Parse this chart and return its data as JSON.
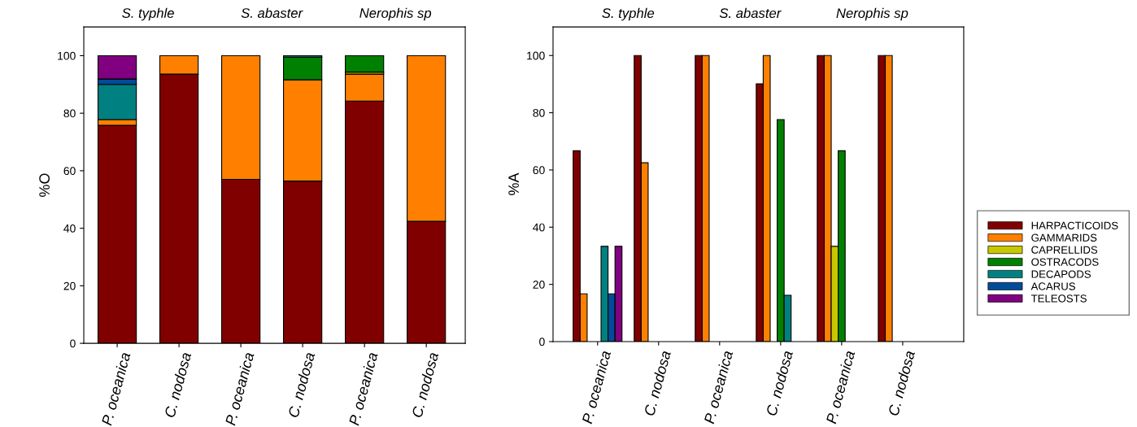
{
  "chart_data": [
    {
      "type": "bar",
      "stacked": true,
      "ylabel": "%O",
      "categories": [
        "P. oceanica",
        "C. nodosa",
        "P. oceanica",
        "C. nodosa",
        "P. oceanica",
        "C. nodosa"
      ],
      "annotations": [
        "S. typhle",
        "S. abaster",
        "Nerophis sp"
      ],
      "ylim": [
        0,
        110
      ],
      "yticks": [
        0,
        20,
        40,
        60,
        80,
        100
      ],
      "grid": false,
      "legend": false,
      "series": [
        {
          "color": "#800000",
          "values": [
            75.8,
            93.6,
            57.0,
            56.4,
            84.2,
            42.4
          ]
        },
        {
          "color": "#ff8000",
          "values": [
            2.0,
            6.4,
            43.0,
            35.2,
            9.4,
            57.6
          ]
        },
        {
          "color": "#c8c800",
          "values": [
            null,
            null,
            null,
            null,
            0.7,
            null
          ]
        },
        {
          "color": "#008000",
          "values": [
            null,
            null,
            null,
            7.9,
            5.7,
            null
          ]
        },
        {
          "color": "#008080",
          "values": [
            12.2,
            null,
            null,
            0.5,
            null,
            null
          ]
        },
        {
          "color": "#004c99",
          "values": [
            1.9,
            null,
            null,
            null,
            null,
            null
          ]
        },
        {
          "color": "#800080",
          "values": [
            8.1,
            null,
            null,
            null,
            null,
            null
          ]
        }
      ]
    },
    {
      "type": "bar",
      "ylabel": "%A",
      "categories": [
        "P. oceanica",
        "C. nodosa",
        "P. oceanica",
        "C. nodosa",
        "P. oceanica",
        "C. nodosa"
      ],
      "annotations": [
        "S. typhle",
        "S. abaster",
        "Nerophis sp"
      ],
      "ylim": [
        0,
        110
      ],
      "yticks": [
        0,
        20,
        40,
        60,
        80,
        100
      ],
      "grid": false,
      "legend": "right",
      "series": [
        {
          "name": "HARPACTICOIDS",
          "color": "#800000",
          "values": [
            66.7,
            100,
            100,
            90.1,
            100,
            100
          ]
        },
        {
          "name": "GAMMARIDS",
          "color": "#ff8000",
          "values": [
            16.7,
            62.5,
            100,
            100,
            100,
            100
          ]
        },
        {
          "name": "CAPRELLIDS",
          "color": "#c8c800",
          "values": [
            null,
            null,
            null,
            null,
            33.3,
            null
          ]
        },
        {
          "name": "OSTRACODS",
          "color": "#008000",
          "values": [
            null,
            null,
            null,
            77.6,
            66.7,
            null
          ]
        },
        {
          "name": "DECAPODS",
          "color": "#008080",
          "values": [
            33.3,
            null,
            null,
            16.2,
            null,
            null
          ]
        },
        {
          "name": "ACARUS",
          "color": "#004c99",
          "values": [
            16.7,
            null,
            null,
            null,
            null,
            null
          ]
        },
        {
          "name": "TELEOSTS",
          "color": "#800080",
          "values": [
            33.3,
            null,
            null,
            null,
            null,
            null
          ]
        }
      ]
    }
  ]
}
